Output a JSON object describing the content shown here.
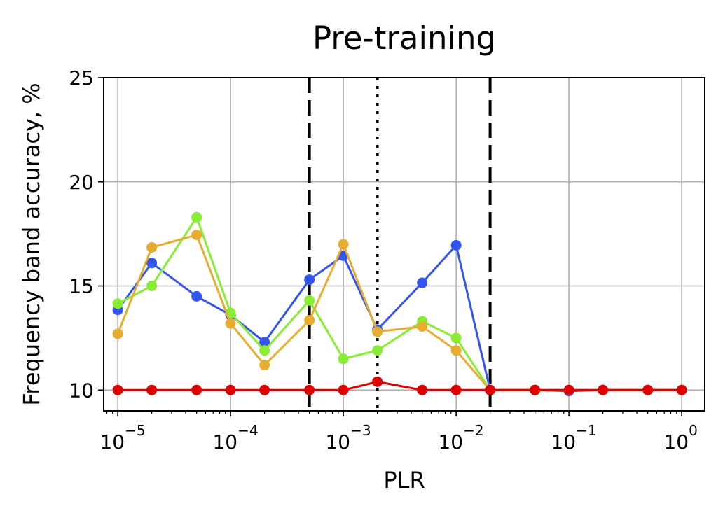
{
  "chart_data": {
    "type": "line",
    "title": "Pre-training",
    "xlabel": "PLR",
    "ylabel": "Frequency band accuracy, %",
    "xscale": "log",
    "xlim": [
      7.5e-06,
      1.6
    ],
    "ylim": [
      9,
      25
    ],
    "grid": true,
    "yticks": [
      10,
      15,
      20,
      25
    ],
    "xticks": [
      {
        "value": 1e-05,
        "base": "10",
        "exp": "−5"
      },
      {
        "value": 0.0001,
        "base": "10",
        "exp": "−4"
      },
      {
        "value": 0.001,
        "base": "10",
        "exp": "−3"
      },
      {
        "value": 0.01,
        "base": "10",
        "exp": "−2"
      },
      {
        "value": 0.1,
        "base": "10",
        "exp": "−1"
      },
      {
        "value": 1,
        "base": "10",
        "exp": "0"
      }
    ],
    "x": [
      1e-05,
      2e-05,
      5e-05,
      0.0001,
      0.0002,
      0.0005,
      0.001,
      0.002,
      0.005,
      0.01,
      0.02,
      0.05,
      0.1,
      0.2,
      0.5,
      1
    ],
    "series": [
      {
        "color": "#3355ee",
        "values": [
          13.85,
          16.1,
          14.5,
          13.6,
          12.3,
          15.3,
          16.45,
          12.9,
          15.15,
          16.95,
          10.0,
          10.0,
          9.95,
          10.0,
          10.0,
          10.0
        ]
      },
      {
        "color": "#88ee33",
        "values": [
          14.15,
          15.0,
          18.3,
          13.7,
          11.9,
          14.3,
          11.5,
          11.9,
          13.3,
          12.5,
          10.0,
          10.0,
          10.0,
          10.0,
          10.0,
          10.0
        ]
      },
      {
        "color": "#e8ad30",
        "values": [
          12.7,
          16.85,
          17.45,
          13.2,
          11.2,
          13.35,
          17.0,
          12.8,
          13.05,
          11.9,
          10.0,
          10.0,
          10.0,
          10.0,
          10.0,
          10.0
        ]
      },
      {
        "color": "#dd0000",
        "values": [
          10.0,
          10.0,
          10.0,
          10.0,
          10.0,
          10.0,
          10.0,
          10.4,
          10.0,
          10.0,
          10.0,
          10.0,
          10.0,
          10.0,
          10.0,
          10.0
        ]
      }
    ],
    "vlines": [
      {
        "x": 0.0005,
        "style": "dashed"
      },
      {
        "x": 0.002,
        "style": "dotted"
      },
      {
        "x": 0.02,
        "style": "dashed"
      }
    ]
  }
}
